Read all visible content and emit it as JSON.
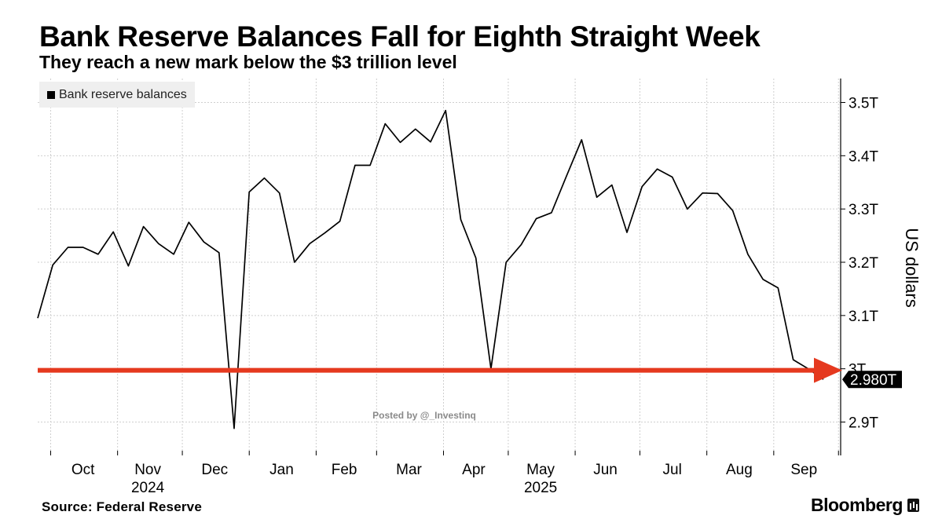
{
  "chart_data": {
    "type": "line",
    "title": "Bank Reserve Balances Fall for Eighth Straight Week",
    "subtitle": "They reach a new mark below the $3 trillion level",
    "legend": "Bank reserve balances",
    "ylabel": "US dollars",
    "ylim": [
      2.835,
      3.535
    ],
    "yticks": [
      {
        "value": 3.5,
        "label": "3.5T"
      },
      {
        "value": 3.4,
        "label": "3.4T"
      },
      {
        "value": 3.3,
        "label": "3.3T"
      },
      {
        "value": 3.2,
        "label": "3.2T"
      },
      {
        "value": 3.1,
        "label": "3.1T"
      },
      {
        "value": 3.0,
        "label": "3T"
      },
      {
        "value": 2.9,
        "label": "2.9T"
      }
    ],
    "xlim": [
      "2024-09-25",
      "2025-10-02"
    ],
    "month_ticks": [
      "2024-10-01",
      "2024-11-01",
      "2024-12-01",
      "2025-01-01",
      "2025-02-01",
      "2025-03-01",
      "2025-04-01",
      "2025-05-01",
      "2025-06-01",
      "2025-07-01",
      "2025-08-01",
      "2025-09-01",
      "2025-10-01"
    ],
    "month_labels": [
      {
        "label": "Oct",
        "mid": "2024-10-16"
      },
      {
        "label": "Nov",
        "mid": "2024-11-15"
      },
      {
        "label": "Dec",
        "mid": "2024-12-16"
      },
      {
        "label": "Jan",
        "mid": "2025-01-16"
      },
      {
        "label": "Feb",
        "mid": "2025-02-14"
      },
      {
        "label": "Mar",
        "mid": "2025-03-16"
      },
      {
        "label": "Apr",
        "mid": "2025-04-15"
      },
      {
        "label": "May",
        "mid": "2025-05-16"
      },
      {
        "label": "Jun",
        "mid": "2025-06-15"
      },
      {
        "label": "Jul",
        "mid": "2025-07-16"
      },
      {
        "label": "Aug",
        "mid": "2025-08-16"
      },
      {
        "label": "Sep",
        "mid": "2025-09-15"
      }
    ],
    "year_labels": [
      {
        "label": "2024",
        "mid": "2024-11-15"
      },
      {
        "label": "2025",
        "mid": "2025-05-16"
      }
    ],
    "x": [
      "2024-09-25",
      "2024-10-02",
      "2024-10-09",
      "2024-10-16",
      "2024-10-23",
      "2024-10-30",
      "2024-11-06",
      "2024-11-13",
      "2024-11-20",
      "2024-11-27",
      "2024-12-04",
      "2024-12-11",
      "2024-12-18",
      "2024-12-25",
      "2025-01-01",
      "2025-01-08",
      "2025-01-15",
      "2025-01-22",
      "2025-01-29",
      "2025-02-05",
      "2025-02-12",
      "2025-02-19",
      "2025-02-26",
      "2025-03-05",
      "2025-03-12",
      "2025-03-19",
      "2025-03-26",
      "2025-04-02",
      "2025-04-09",
      "2025-04-16",
      "2025-04-23",
      "2025-04-30",
      "2025-05-07",
      "2025-05-14",
      "2025-05-21",
      "2025-05-28",
      "2025-06-04",
      "2025-06-11",
      "2025-06-18",
      "2025-06-25",
      "2025-07-02",
      "2025-07-09",
      "2025-07-16",
      "2025-07-23",
      "2025-07-30",
      "2025-08-06",
      "2025-08-13",
      "2025-08-20",
      "2025-08-27",
      "2025-09-03",
      "2025-09-10",
      "2025-09-17",
      "2025-09-24"
    ],
    "values": [
      3.095,
      3.195,
      3.228,
      3.228,
      3.215,
      3.257,
      3.193,
      3.267,
      3.235,
      3.215,
      3.275,
      3.238,
      3.218,
      2.888,
      3.332,
      3.358,
      3.33,
      3.2,
      3.235,
      3.255,
      3.277,
      3.382,
      3.382,
      3.46,
      3.425,
      3.45,
      3.426,
      3.485,
      3.28,
      3.208,
      3.0,
      3.2,
      3.233,
      3.282,
      3.293,
      3.362,
      3.43,
      3.322,
      3.345,
      3.256,
      3.342,
      3.375,
      3.36,
      3.3,
      3.33,
      3.329,
      3.297,
      3.215,
      3.168,
      3.152,
      3.017,
      3.0,
      2.98
    ],
    "last_value_label": "2.980T",
    "annotation": "Posted by @_Investinq",
    "highlight_level": {
      "value": 3.0,
      "color": "#e5391f"
    },
    "colors": {
      "line": "#000000",
      "grid": "#cfcfcf",
      "arrow": "#e5391f",
      "value_tag": "#000000"
    }
  },
  "footer": {
    "source": "Source:  Federal Reserve",
    "brand": "Bloomberg"
  }
}
